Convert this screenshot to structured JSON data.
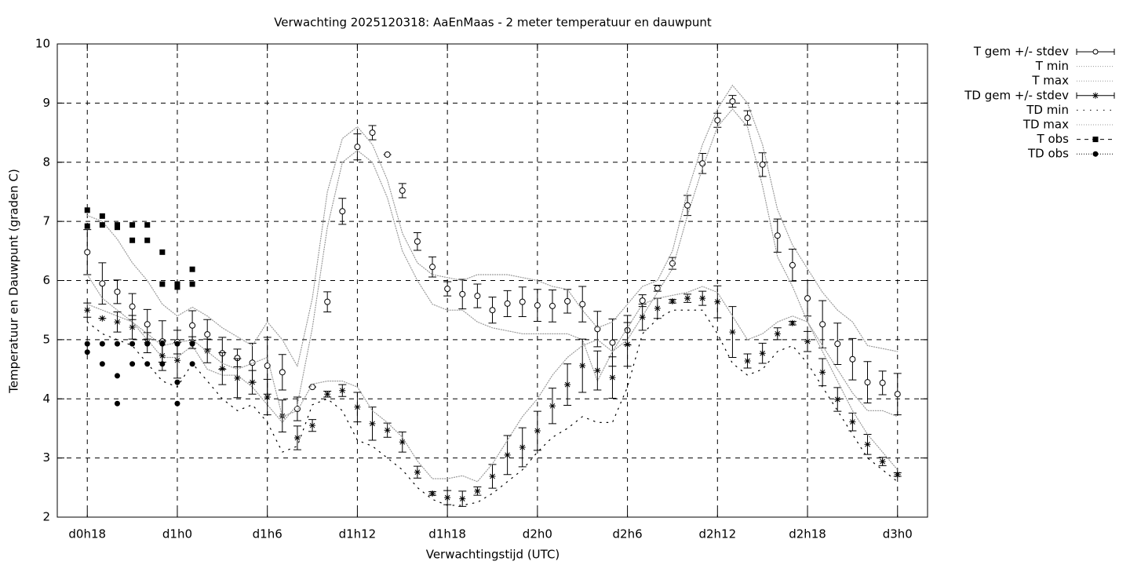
{
  "chart_data": {
    "type": "errorbar",
    "title": "Verwachting 2025120318: AaEnMaas - 2 meter temperatuur en dauwpunt",
    "xlabel": "Verwachtingstijd (UTC)",
    "ylabel": "Temperatuur en Dauwpunt (graden C)",
    "xlim": [
      -2,
      56
    ],
    "ylim": [
      2,
      10
    ],
    "xticks": [
      {
        "value": 0,
        "label": "d0h18"
      },
      {
        "value": 6,
        "label": "d1h0"
      },
      {
        "value": 12,
        "label": "d1h6"
      },
      {
        "value": 18,
        "label": "d1h12"
      },
      {
        "value": 24,
        "label": "d1h18"
      },
      {
        "value": 30,
        "label": "d2h0"
      },
      {
        "value": 36,
        "label": "d2h6"
      },
      {
        "value": 42,
        "label": "d2h12"
      },
      {
        "value": 48,
        "label": "d2h18"
      },
      {
        "value": 54,
        "label": "d3h0"
      }
    ],
    "yticks": [
      2,
      3,
      4,
      5,
      6,
      7,
      8,
      9,
      10
    ],
    "grid": true,
    "legend": "right",
    "x": [
      0,
      1,
      2,
      3,
      4,
      5,
      6,
      7,
      8,
      9,
      10,
      11,
      12,
      13,
      14,
      15,
      16,
      17,
      18,
      19,
      20,
      21,
      22,
      23,
      24,
      25,
      26,
      27,
      28,
      29,
      30,
      31,
      32,
      33,
      34,
      35,
      36,
      37,
      38,
      39,
      40,
      41,
      42,
      43,
      44,
      45,
      46,
      47,
      48,
      49,
      50,
      51,
      52,
      53,
      54
    ],
    "series": [
      {
        "name": "T gem +/- stdev",
        "color": "#000000",
        "marker": "circle",
        "style": "errorbar",
        "values": [
          6.48,
          5.95,
          5.81,
          5.56,
          5.26,
          4.97,
          4.96,
          5.24,
          5.09,
          4.77,
          4.69,
          4.61,
          4.56,
          4.45,
          3.83,
          4.2,
          5.64,
          7.17,
          8.26,
          8.5,
          8.13,
          7.52,
          6.66,
          6.23,
          5.86,
          5.77,
          5.74,
          5.5,
          5.61,
          5.64,
          5.58,
          5.57,
          5.65,
          5.6,
          5.18,
          4.95,
          5.16,
          5.66,
          5.87,
          6.29,
          7.27,
          7.98,
          8.71,
          9.03,
          8.75,
          7.96,
          6.76,
          6.26,
          5.7,
          5.26,
          4.93,
          4.67,
          4.28,
          4.27,
          4.08
        ],
        "errors": [
          0.38,
          0.35,
          0.2,
          0.22,
          0.25,
          0.35,
          0.2,
          0.25,
          0.25,
          0.27,
          0.15,
          0.33,
          0.48,
          0.3,
          0.2,
          0,
          0.17,
          0.22,
          0.22,
          0.12,
          0,
          0.12,
          0.15,
          0.17,
          0.12,
          0.25,
          0.2,
          0.22,
          0.22,
          0.25,
          0.27,
          0.27,
          0.2,
          0.3,
          0.3,
          0.4,
          0.25,
          0.1,
          0.05,
          0.1,
          0.17,
          0.17,
          0.12,
          0.1,
          0.12,
          0.2,
          0.28,
          0.27,
          0.3,
          0.4,
          0.35,
          0.35,
          0.35,
          0.2,
          0.35
        ]
      },
      {
        "name": "T min",
        "color": "#999999",
        "marker": "none",
        "style": "dotted",
        "values": [
          6.1,
          5.7,
          5.5,
          5.3,
          5.0,
          4.7,
          4.7,
          4.9,
          4.5,
          4.4,
          4.4,
          4.2,
          3.9,
          3.6,
          3.9,
          5.2,
          6.9,
          8.0,
          8.2,
          8.0,
          7.4,
          6.5,
          6.0,
          5.6,
          5.5,
          5.5,
          5.3,
          5.2,
          5.15,
          5.1,
          5.1,
          5.1,
          5.1,
          5.0,
          4.3,
          4.8,
          5.0,
          5.4,
          5.8,
          6.2,
          7.1,
          7.9,
          8.6,
          8.9,
          8.6,
          7.6,
          6.4,
          5.9,
          5.3,
          4.9,
          4.5,
          4.1,
          3.8,
          3.8,
          3.7
        ]
      },
      {
        "name": "T max",
        "color": "#999999",
        "marker": "none",
        "style": "dotted",
        "values": [
          7.1,
          7.0,
          6.7,
          6.3,
          6.0,
          5.6,
          5.4,
          5.55,
          5.4,
          5.2,
          5.05,
          4.9,
          5.3,
          5.0,
          4.55,
          5.7,
          7.5,
          8.4,
          8.6,
          8.3,
          7.7,
          6.8,
          6.3,
          6.1,
          6.05,
          6.0,
          6.1,
          6.1,
          6.1,
          6.05,
          6.0,
          5.9,
          5.85,
          5.5,
          5.2,
          5.3,
          5.6,
          5.9,
          6.0,
          6.5,
          7.5,
          8.3,
          8.9,
          9.3,
          9.0,
          8.3,
          7.2,
          6.6,
          6.2,
          5.8,
          5.5,
          5.3,
          4.9,
          4.85,
          4.8
        ]
      },
      {
        "name": "TD gem +/- stdev",
        "color": "#000000",
        "marker": "asterisk",
        "style": "errorbar",
        "values": [
          5.5,
          5.36,
          5.3,
          5.21,
          4.95,
          4.73,
          4.65,
          4.95,
          4.81,
          4.51,
          4.35,
          4.28,
          4.03,
          3.71,
          3.34,
          3.55,
          4.08,
          4.14,
          3.86,
          3.58,
          3.47,
          3.27,
          2.76,
          2.4,
          2.33,
          2.31,
          2.44,
          2.69,
          3.05,
          3.18,
          3.46,
          3.88,
          4.24,
          4.56,
          4.48,
          4.36,
          4.92,
          5.38,
          5.53,
          5.65,
          5.7,
          5.7,
          5.64,
          5.13,
          4.64,
          4.77,
          5.1,
          5.28,
          4.97,
          4.45,
          3.99,
          3.61,
          3.23,
          2.94,
          2.72
        ],
        "errors": [
          0.12,
          0,
          0.17,
          0.2,
          0.17,
          0.25,
          0.3,
          0.1,
          0.2,
          0.27,
          0.33,
          0.2,
          0.3,
          0.27,
          0.2,
          0.1,
          0.05,
          0.1,
          0.25,
          0.28,
          0.12,
          0.17,
          0.1,
          0.03,
          0.12,
          0.13,
          0.07,
          0.2,
          0.33,
          0.33,
          0.33,
          0.3,
          0.35,
          0.45,
          0.33,
          0.35,
          0.37,
          0.22,
          0.17,
          0.03,
          0.07,
          0.12,
          0.27,
          0.43,
          0.12,
          0.17,
          0.1,
          0.03,
          0.17,
          0.23,
          0.2,
          0.15,
          0.17,
          0.07,
          0.03
        ]
      },
      {
        "name": "TD min",
        "color": "#000000",
        "marker": "none",
        "style": "sparse",
        "values": [
          5.3,
          5.1,
          5.0,
          4.9,
          4.6,
          4.3,
          4.2,
          4.6,
          4.3,
          4.0,
          3.8,
          3.9,
          3.6,
          3.1,
          3.2,
          3.9,
          4.0,
          3.8,
          3.3,
          3.2,
          3.0,
          2.8,
          2.5,
          2.3,
          2.2,
          2.2,
          2.25,
          2.4,
          2.6,
          2.8,
          3.1,
          3.35,
          3.5,
          3.7,
          3.6,
          3.6,
          4.2,
          5.1,
          5.35,
          5.5,
          5.5,
          5.5,
          5.1,
          4.6,
          4.4,
          4.5,
          4.8,
          4.9,
          4.6,
          4.2,
          3.8,
          3.4,
          3.0,
          2.8,
          2.6
        ]
      },
      {
        "name": "TD max",
        "color": "#999999",
        "marker": "none",
        "style": "dotted",
        "values": [
          5.6,
          5.5,
          5.4,
          5.3,
          5.1,
          4.9,
          4.95,
          5.0,
          4.8,
          4.6,
          4.5,
          4.6,
          4.7,
          3.7,
          3.8,
          4.25,
          4.3,
          4.3,
          4.2,
          3.8,
          3.6,
          3.35,
          2.95,
          2.65,
          2.65,
          2.7,
          2.6,
          2.9,
          3.3,
          3.7,
          4.0,
          4.4,
          4.7,
          4.9,
          5.0,
          4.8,
          5.2,
          5.6,
          5.7,
          5.75,
          5.8,
          5.9,
          5.8,
          5.4,
          5.0,
          5.1,
          5.3,
          5.4,
          5.3,
          4.8,
          4.3,
          3.8,
          3.4,
          3.1,
          2.8
        ]
      },
      {
        "name": "T obs",
        "color": "#000000",
        "marker": "square",
        "style": "points",
        "x": [
          0,
          0,
          1,
          1,
          2,
          2,
          3,
          3,
          4,
          4,
          5,
          5,
          6,
          6,
          7,
          7
        ],
        "values": [
          7.19,
          6.92,
          7.09,
          6.94,
          6.94,
          6.9,
          6.94,
          6.68,
          6.94,
          6.68,
          6.48,
          5.94,
          5.94,
          5.89,
          6.19,
          5.94
        ]
      },
      {
        "name": "TD obs",
        "color": "#000000",
        "marker": "dot",
        "style": "points",
        "x": [
          0,
          0,
          1,
          1,
          2,
          2,
          2,
          3,
          3,
          4,
          4,
          5,
          5,
          6,
          6,
          6,
          7,
          7
        ],
        "values": [
          4.93,
          4.79,
          4.93,
          4.59,
          4.93,
          4.39,
          3.92,
          4.93,
          4.59,
          4.93,
          4.59,
          4.93,
          4.59,
          4.93,
          4.28,
          3.92,
          4.93,
          4.59
        ]
      }
    ]
  }
}
